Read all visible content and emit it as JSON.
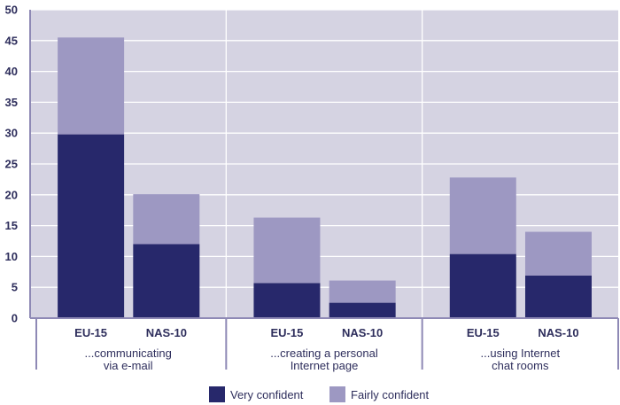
{
  "chart_data": {
    "type": "bar",
    "stacked": true,
    "ylim": [
      0,
      50
    ],
    "yticks": [
      0,
      5,
      10,
      15,
      20,
      25,
      30,
      35,
      40,
      45,
      50
    ],
    "groups": [
      {
        "label_lines": [
          "...communicating",
          "via e-mail"
        ],
        "categories": [
          "EU-15",
          "NAS-10"
        ]
      },
      {
        "label_lines": [
          "...creating a personal",
          "Internet page"
        ],
        "categories": [
          "EU-15",
          "NAS-10"
        ]
      },
      {
        "label_lines": [
          "...using Internet",
          "chat rooms"
        ],
        "categories": [
          "EU-15",
          "NAS-10"
        ]
      }
    ],
    "series": [
      {
        "name": "Very confident",
        "color": "#27286b",
        "values": [
          29.8,
          12.0,
          5.7,
          2.5,
          10.4,
          6.9
        ]
      },
      {
        "name": "Fairly confident",
        "color": "#9d98c2",
        "values": [
          15.7,
          8.1,
          10.6,
          3.6,
          12.4,
          7.1
        ]
      }
    ],
    "grid": true,
    "plot_background": "#d5d3e2",
    "legend_position": "bottom"
  }
}
